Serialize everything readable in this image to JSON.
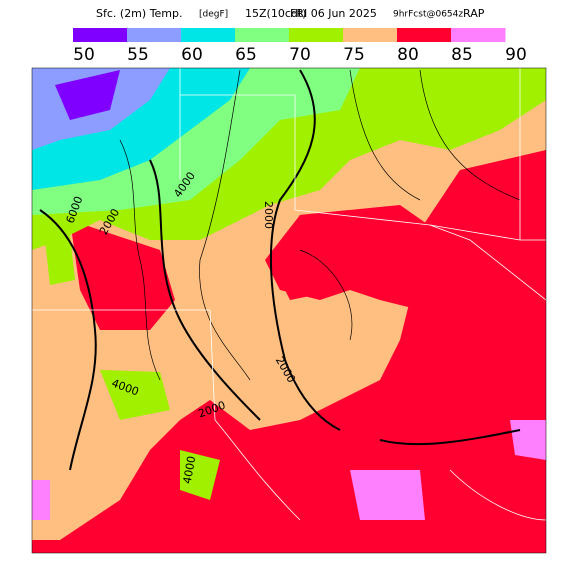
{
  "header": {
    "title_parts": [
      "Sfc. (2m) Temp.",
      "[degF]",
      "15Z(10cdt)",
      "FRI 06 Jun 2025",
      "9hrFcst@0654z",
      "RAP"
    ]
  },
  "legend": {
    "ticks": [
      50,
      55,
      60,
      65,
      70,
      75,
      80,
      85,
      90
    ],
    "colors": [
      "#7f00ff",
      "#8c9cff",
      "#00e6e6",
      "#80ff80",
      "#a0f000",
      "#ffbf80",
      "#ff0030",
      "#ff80ff"
    ]
  },
  "map": {
    "contour_labels": [
      "6000",
      "4000",
      "2000",
      "2000",
      "2000",
      "4000",
      "2000",
      "4000"
    ]
  }
}
